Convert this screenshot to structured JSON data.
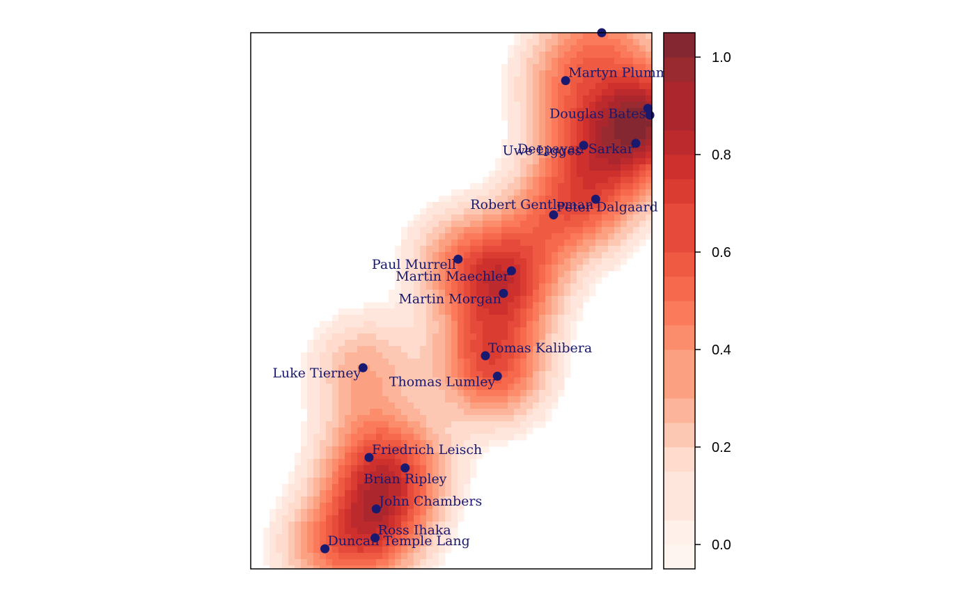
{
  "chart_data": {
    "type": "heatmap",
    "title": "",
    "xlabel": "",
    "ylabel": "",
    "colorbar": {
      "ticks": [
        "0.0",
        "0.2",
        "0.4",
        "0.6",
        "0.8",
        "1.0"
      ],
      "levels": [
        -0.05,
        0.0,
        0.05,
        0.1,
        0.15,
        0.2,
        0.25,
        0.3,
        0.35,
        0.4,
        0.45,
        0.5,
        0.55,
        0.6,
        0.65,
        0.7,
        0.75,
        0.8,
        0.85,
        0.9,
        0.95,
        1.0,
        1.05
      ],
      "palette": [
        "#fff5f0",
        "#fff0ea",
        "#fee6dc",
        "#fedbcc",
        "#fcc8b3",
        "#fcb49a",
        "#fca082",
        "#fc8d6c",
        "#fb7a5b",
        "#f7694c",
        "#ef5a43",
        "#e54a3a",
        "#db3c32",
        "#ce302e",
        "#bd2a2e",
        "#ab262d",
        "#982a30",
        "#852730"
      ],
      "range": [
        -0.05,
        1.05
      ]
    },
    "extent": {
      "x": [
        0,
        10
      ],
      "y": [
        0,
        13.33
      ]
    },
    "points": [
      {
        "name": "",
        "x": 8.75,
        "y": 13.33,
        "label_side": "none"
      },
      {
        "name": "Martyn Plummer",
        "x": 7.85,
        "y": 12.14,
        "label_side": "right"
      },
      {
        "name": "Douglas Bates",
        "x": 9.9,
        "y": 11.45,
        "label_side": "left"
      },
      {
        "name": "",
        "x": 9.95,
        "y": 11.28,
        "label_side": "right"
      },
      {
        "name": "Deepayan Sarkar",
        "x": 9.6,
        "y": 10.58,
        "label_side": "left"
      },
      {
        "name": "Uwe Ligges",
        "x": 8.3,
        "y": 10.53,
        "label_side": "left"
      },
      {
        "name": "Robert Gentleman",
        "x": 8.6,
        "y": 9.19,
        "label_side": "left"
      },
      {
        "name": "Peter Dalgaard",
        "x": 7.55,
        "y": 8.8,
        "label_side": "right"
      },
      {
        "name": "Paul Murrell",
        "x": 5.17,
        "y": 7.7,
        "label_side": "left"
      },
      {
        "name": "Martin Maechler",
        "x": 6.5,
        "y": 7.41,
        "label_side": "left"
      },
      {
        "name": "Martin Morgan",
        "x": 6.3,
        "y": 6.85,
        "label_side": "left"
      },
      {
        "name": "Tomas Kalibera",
        "x": 5.85,
        "y": 5.3,
        "label_side": "right"
      },
      {
        "name": "Luke Tierney",
        "x": 2.8,
        "y": 5.0,
        "label_side": "left"
      },
      {
        "name": "Thomas Lumley",
        "x": 6.15,
        "y": 4.79,
        "label_side": "left"
      },
      {
        "name": "Friedrich Leisch",
        "x": 2.95,
        "y": 2.77,
        "label_side": "right"
      },
      {
        "name": "Brian Ripley",
        "x": 3.85,
        "y": 2.51,
        "label_side": "below"
      },
      {
        "name": "John Chambers",
        "x": 3.13,
        "y": 1.49,
        "label_side": "right"
      },
      {
        "name": "Ross Ihaka",
        "x": 3.1,
        "y": 0.77,
        "label_side": "right"
      },
      {
        "name": "Duncan Temple Lang",
        "x": 1.85,
        "y": 0.5,
        "label_side": "right"
      }
    ],
    "point_color": "#191970",
    "grid": false,
    "legend": "right-colorbar"
  }
}
